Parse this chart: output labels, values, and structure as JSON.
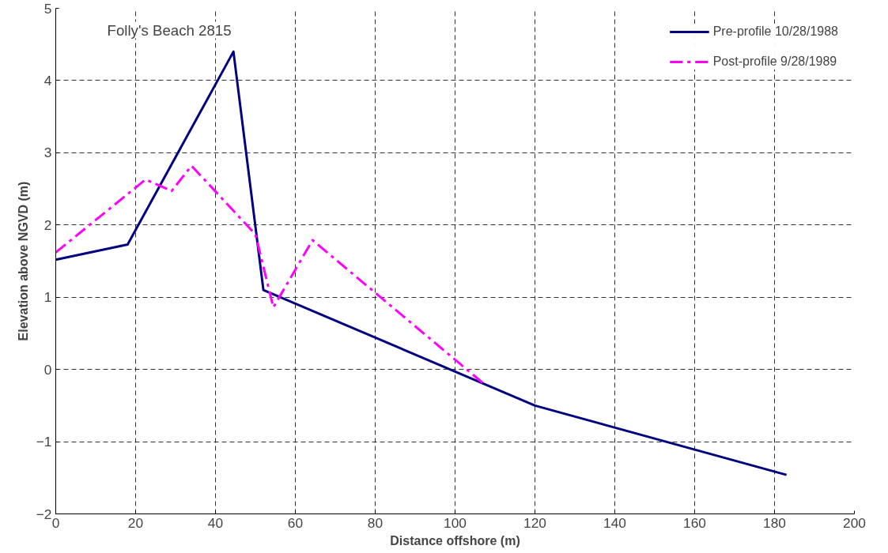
{
  "chart_data": {
    "type": "line",
    "title": "Folly's Beach 2815",
    "xlabel": "Distance offshore (m)",
    "ylabel": "Elevation above NGVD (m)",
    "xlim": [
      0,
      200
    ],
    "xticks": [
      0,
      20,
      40,
      60,
      80,
      100,
      120,
      140,
      160,
      180,
      200
    ],
    "ylim": [
      -2,
      5
    ],
    "yticks": [
      -2,
      -1,
      0,
      1,
      2,
      3,
      4,
      5
    ],
    "grid": true,
    "legend": "top right",
    "marker": "none",
    "series": [
      {
        "name": "Pre-profile 10/28/1988",
        "color": "#000080",
        "line_style": "solid",
        "x": [
          0,
          18,
          44.5,
          52,
          120,
          183
        ],
        "values": [
          1.52,
          1.73,
          4.4,
          1.1,
          -0.5,
          -1.46
        ]
      },
      {
        "name": "Post-profile 9/28/1989",
        "color": "#ff00ff",
        "line_style": "dashdot",
        "x": [
          0,
          22.5,
          29,
          34,
          50,
          54.5,
          64.3,
          107
        ],
        "values": [
          1.62,
          2.63,
          2.47,
          2.82,
          1.87,
          0.86,
          1.79,
          -0.19
        ]
      }
    ]
  }
}
